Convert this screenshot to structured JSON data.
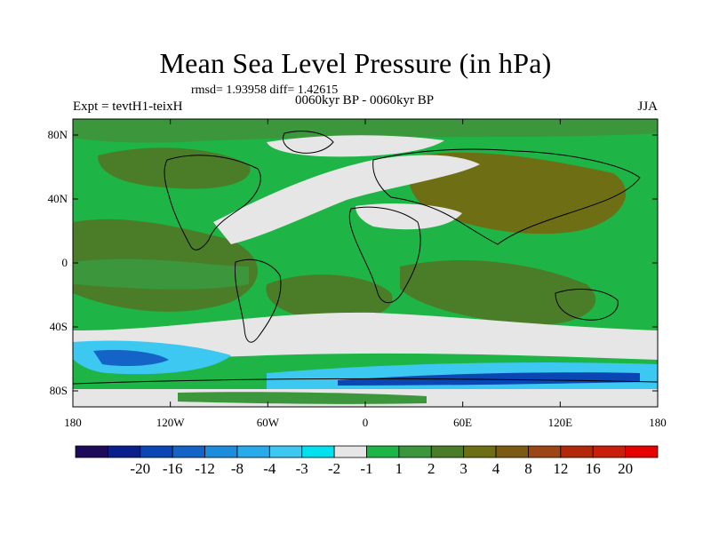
{
  "title": "Mean Sea Level Pressure (in hPa)",
  "stats_line": "rmsd= 1.93958 diff= 1.42615",
  "experiment_label": "Expt = tevtH1-teixH",
  "period_label": "0060kyr BP - 0060kyr BP",
  "season_label": "JJA",
  "map": {
    "projection": "cylindrical equidistant",
    "lon_range": [
      -180,
      180
    ],
    "lat_range": [
      -90,
      90
    ],
    "lat_ticks": [
      {
        "value": 80,
        "label": "80N"
      },
      {
        "value": 40,
        "label": "40N"
      },
      {
        "value": 0,
        "label": "0"
      },
      {
        "value": -40,
        "label": "40S"
      },
      {
        "value": -80,
        "label": "80S"
      }
    ],
    "lon_ticks": [
      {
        "value": -180,
        "label": "180"
      },
      {
        "value": -120,
        "label": "120W"
      },
      {
        "value": -60,
        "label": "60W"
      },
      {
        "value": 0,
        "label": "0"
      },
      {
        "value": 60,
        "label": "60E"
      },
      {
        "value": 120,
        "label": "120E"
      },
      {
        "value": 180,
        "label": "180"
      }
    ]
  },
  "colorbar": {
    "colors": [
      "#1e0a5a",
      "#0a1e8c",
      "#0a46b4",
      "#1464c8",
      "#1e8cdc",
      "#28aaeb",
      "#3cc8f0",
      "#00e1f0",
      "#e6e6e6",
      "#1eb446",
      "#3c963c",
      "#4b7d28",
      "#6e6e14",
      "#7d5a14",
      "#9b4614",
      "#b4280a",
      "#c81e0a",
      "#e60000"
    ],
    "labels": [
      {
        "after_box": 1,
        "text": "-20"
      },
      {
        "after_box": 2,
        "text": "-16"
      },
      {
        "after_box": 3,
        "text": "-12"
      },
      {
        "after_box": 4,
        "text": "-8"
      },
      {
        "after_box": 5,
        "text": "-4"
      },
      {
        "after_box": 6,
        "text": "-3"
      },
      {
        "after_box": 7,
        "text": "-2"
      },
      {
        "after_box": 8,
        "text": "-1"
      },
      {
        "after_box": 9,
        "text": "1"
      },
      {
        "after_box": 10,
        "text": "2"
      },
      {
        "after_box": 11,
        "text": "3"
      },
      {
        "after_box": 12,
        "text": "4"
      },
      {
        "after_box": 13,
        "text": "8"
      },
      {
        "after_box": 14,
        "text": "12"
      },
      {
        "after_box": 15,
        "text": "16"
      },
      {
        "after_box": 16,
        "text": "20"
      }
    ]
  },
  "regions": [
    {
      "name": "background-positive",
      "color": "#1eb446"
    },
    {
      "name": "north-atlantic-neutral-band",
      "color": "#e6e6e6"
    },
    {
      "name": "southern-ocean-neutral-band",
      "color": "#e6e6e6"
    },
    {
      "name": "antarctic-negative-band",
      "color": "#3cc8f0"
    },
    {
      "name": "arctic-neutral",
      "color": "#e6e6e6"
    },
    {
      "name": "eurasia-high",
      "color": "#6e6e14"
    },
    {
      "name": "pacific-high",
      "color": "#4b7d28"
    }
  ]
}
